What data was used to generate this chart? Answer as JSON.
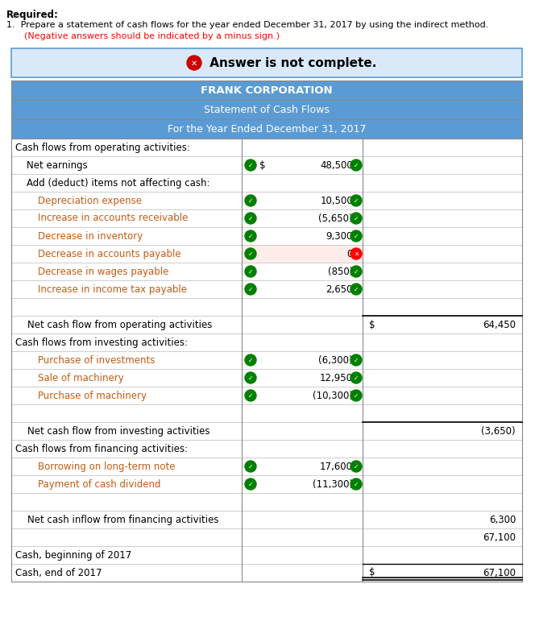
{
  "title1": "FRANK CORPORATION",
  "title2": "Statement of Cash Flows",
  "title3": "For the Year Ended December 31, 2017",
  "header_bg": "#5B9BD5",
  "header_text": "#FFFFFF",
  "answer_banner_bg": "#DAE9F8",
  "answer_banner_border": "#5B9BD5",
  "text_color_black": "#000000",
  "text_color_orange": "#C55A11",
  "required_text": "Required:",
  "item1_text": "1.  Prepare a statement of cash flows for the year ended December 31, 2017 by using the indirect method.",
  "item1_red": "    (Negative answers should be indicated by a minus sign.)",
  "rows": [
    {
      "label": "Cash flows from operating activities:",
      "indent": 0,
      "col2": "",
      "col2_prefix": "",
      "col3": "",
      "col3_prefix": "",
      "type": "section_header",
      "color": "black",
      "check1": false,
      "check2": false,
      "check2_color": "green"
    },
    {
      "label": "Net earnings",
      "indent": 1,
      "col2": "48,500",
      "col2_prefix": "$",
      "col3": "",
      "col3_prefix": "",
      "type": "data",
      "check1": true,
      "check2": true,
      "check2_color": "green",
      "color": "black"
    },
    {
      "label": "Add (deduct) items not affecting cash:",
      "indent": 1,
      "col2": "",
      "col2_prefix": "",
      "col3": "",
      "col3_prefix": "",
      "type": "subheader",
      "color": "black",
      "check1": false,
      "check2": false,
      "check2_color": "green"
    },
    {
      "label": "Depreciation expense",
      "indent": 2,
      "col2": "10,500",
      "col2_prefix": "",
      "col3": "",
      "col3_prefix": "",
      "type": "data",
      "check1": true,
      "check2": true,
      "check2_color": "green",
      "color": "orange"
    },
    {
      "label": "Increase in accounts receivable",
      "indent": 2,
      "col2": "(5,650)",
      "col2_prefix": "",
      "col3": "",
      "col3_prefix": "",
      "type": "data",
      "check1": true,
      "check2": true,
      "check2_color": "green",
      "color": "orange"
    },
    {
      "label": "Decrease in inventory",
      "indent": 2,
      "col2": "9,300",
      "col2_prefix": "",
      "col3": "",
      "col3_prefix": "",
      "type": "data",
      "check1": true,
      "check2": true,
      "check2_color": "green",
      "color": "orange"
    },
    {
      "label": "Decrease in accounts payable",
      "indent": 2,
      "col2": "0",
      "col2_prefix": "",
      "col3": "",
      "col3_prefix": "",
      "type": "data",
      "check1": true,
      "check2": true,
      "check2_color": "red",
      "col2_bg": "#FDECEA",
      "color": "orange"
    },
    {
      "label": "Decrease in wages payable",
      "indent": 2,
      "col2": "(850)",
      "col2_prefix": "",
      "col3": "",
      "col3_prefix": "",
      "type": "data",
      "check1": true,
      "check2": true,
      "check2_color": "green",
      "color": "orange"
    },
    {
      "label": "Increase in income tax payable",
      "indent": 2,
      "col2": "2,650",
      "col2_prefix": "",
      "col3": "",
      "col3_prefix": "",
      "type": "data",
      "check1": true,
      "check2": true,
      "check2_color": "green",
      "color": "orange"
    },
    {
      "label": "",
      "indent": 0,
      "col2": "",
      "col2_prefix": "",
      "col3": "",
      "col3_prefix": "",
      "type": "spacer",
      "check1": false,
      "check2": false,
      "check2_color": "green",
      "color": "black"
    },
    {
      "label": "    Net cash flow from operating activities",
      "indent": 0,
      "col2": "",
      "col2_prefix": "",
      "col3": "64,450",
      "col3_prefix": "$",
      "type": "total",
      "check1": false,
      "check2": false,
      "check2_color": "green",
      "color": "black"
    },
    {
      "label": "Cash flows from investing activities:",
      "indent": 0,
      "col2": "",
      "col2_prefix": "",
      "col3": "",
      "col3_prefix": "",
      "type": "section_header",
      "check1": false,
      "check2": false,
      "check2_color": "green",
      "color": "black"
    },
    {
      "label": "Purchase of investments",
      "indent": 2,
      "col2": "(6,300)",
      "col2_prefix": "",
      "col3": "",
      "col3_prefix": "",
      "type": "data",
      "check1": true,
      "check2": true,
      "check2_color": "green",
      "color": "orange"
    },
    {
      "label": "Sale of machinery",
      "indent": 2,
      "col2": "12,950",
      "col2_prefix": "",
      "col3": "",
      "col3_prefix": "",
      "type": "data",
      "check1": true,
      "check2": true,
      "check2_color": "green",
      "color": "orange"
    },
    {
      "label": "Purchase of machinery",
      "indent": 2,
      "col2": "(10,300)",
      "col2_prefix": "",
      "col3": "",
      "col3_prefix": "",
      "type": "data",
      "check1": true,
      "check2": true,
      "check2_color": "green",
      "color": "orange"
    },
    {
      "label": "",
      "indent": 0,
      "col2": "",
      "col2_prefix": "",
      "col3": "",
      "col3_prefix": "",
      "type": "spacer",
      "check1": false,
      "check2": false,
      "check2_color": "green",
      "color": "black"
    },
    {
      "label": "    Net cash flow from investing activities",
      "indent": 0,
      "col2": "",
      "col2_prefix": "",
      "col3": "(3,650)",
      "col3_prefix": "",
      "type": "total",
      "check1": false,
      "check2": false,
      "check2_color": "green",
      "color": "black"
    },
    {
      "label": "Cash flows from financing activities:",
      "indent": 0,
      "col2": "",
      "col2_prefix": "",
      "col3": "",
      "col3_prefix": "",
      "type": "section_header",
      "check1": false,
      "check2": false,
      "check2_color": "green",
      "color": "black"
    },
    {
      "label": "Borrowing on long-term note",
      "indent": 2,
      "col2": "17,600",
      "col2_prefix": "",
      "col3": "",
      "col3_prefix": "",
      "type": "data",
      "check1": true,
      "check2": true,
      "check2_color": "green",
      "color": "orange"
    },
    {
      "label": "Payment of cash dividend",
      "indent": 2,
      "col2": "(11,300)",
      "col2_prefix": "",
      "col3": "",
      "col3_prefix": "",
      "type": "data",
      "check1": true,
      "check2": true,
      "check2_color": "green",
      "color": "orange"
    },
    {
      "label": "",
      "indent": 0,
      "col2": "",
      "col2_prefix": "",
      "col3": "",
      "col3_prefix": "",
      "type": "spacer",
      "check1": false,
      "check2": false,
      "check2_color": "green",
      "color": "black"
    },
    {
      "label": "    Net cash inflow from financing activities",
      "indent": 0,
      "col2": "",
      "col2_prefix": "",
      "col3": "6,300",
      "col3_prefix": "",
      "type": "total_plain",
      "check1": false,
      "check2": false,
      "check2_color": "green",
      "color": "black"
    },
    {
      "label": "",
      "indent": 0,
      "col2": "",
      "col2_prefix": "",
      "col3": "67,100",
      "col3_prefix": "",
      "type": "subtotal",
      "check1": false,
      "check2": false,
      "check2_color": "green",
      "color": "black"
    },
    {
      "label": "Cash, beginning of 2017",
      "indent": 0,
      "col2": "",
      "col2_prefix": "",
      "col3": "",
      "col3_prefix": "",
      "type": "section_header",
      "check1": false,
      "check2": false,
      "check2_color": "green",
      "color": "black"
    },
    {
      "label": "Cash, end of 2017",
      "indent": 0,
      "col2": "",
      "col2_prefix": "",
      "col3": "67,100",
      "col3_prefix": "$",
      "type": "final_total",
      "check1": false,
      "check2": false,
      "check2_color": "green",
      "color": "black"
    }
  ]
}
